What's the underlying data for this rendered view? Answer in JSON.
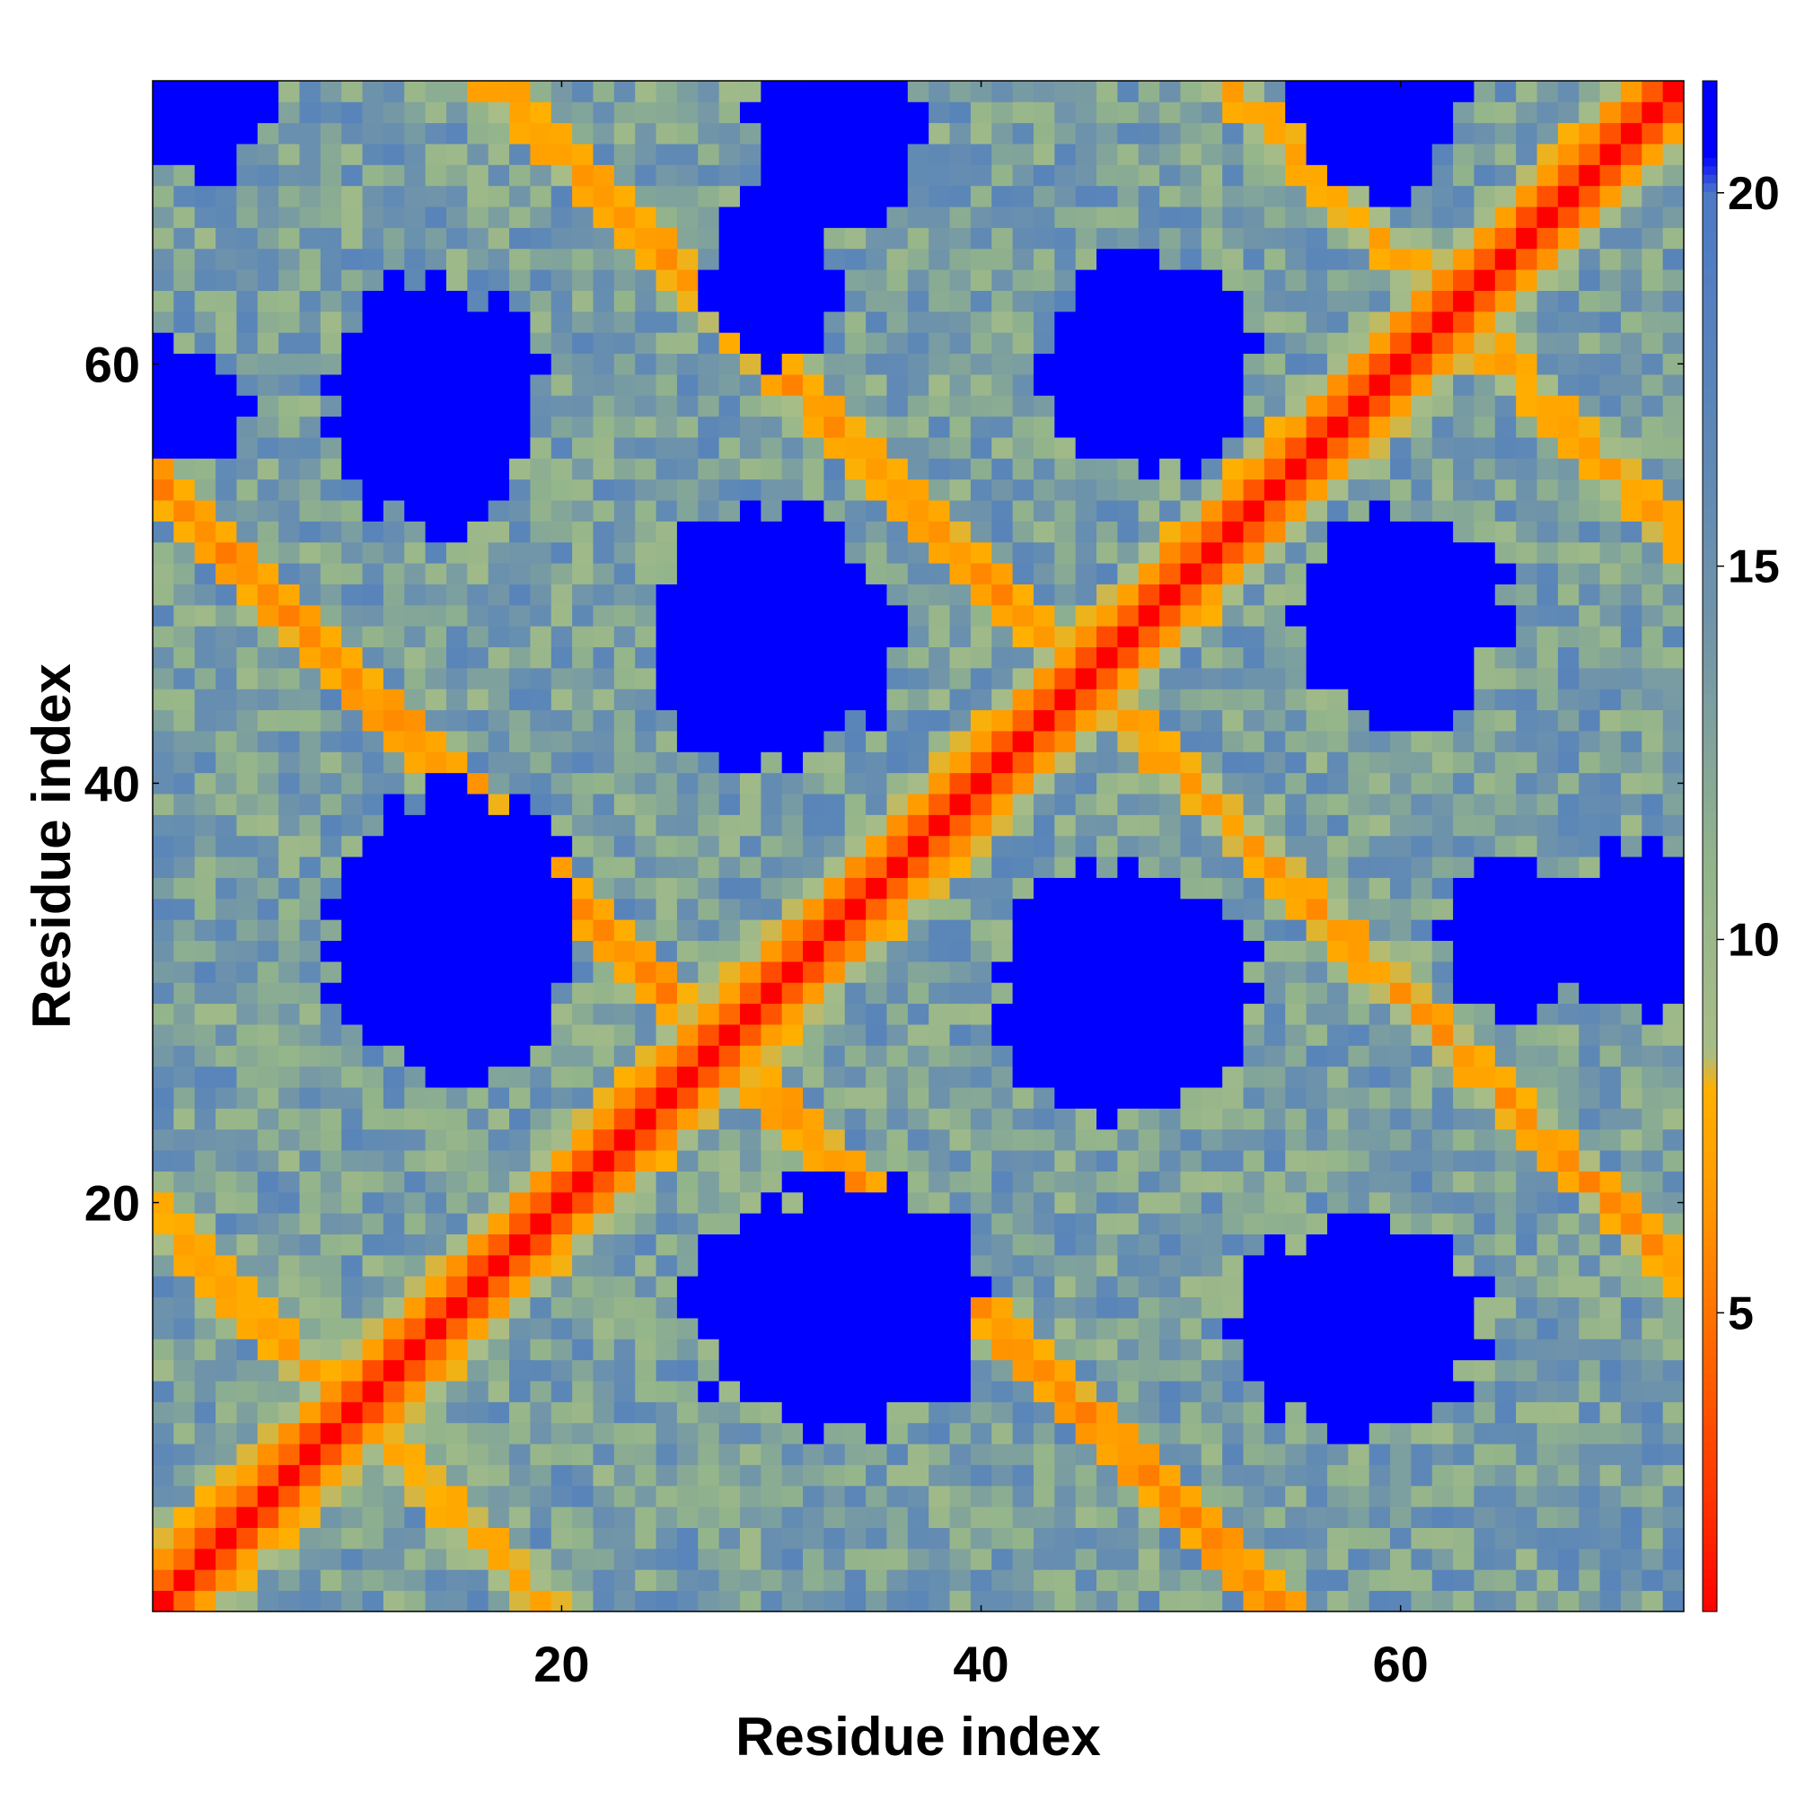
{
  "chart_data": {
    "type": "heatmap",
    "xlabel": "Residue index",
    "ylabel": "Residue index",
    "title": "",
    "x_range": [
      1,
      73
    ],
    "y_range": [
      1,
      73
    ],
    "n_residues": 73,
    "x_ticks": [
      20,
      40,
      60
    ],
    "y_ticks": [
      20,
      40,
      60
    ],
    "colorbar": {
      "ticks": [
        5,
        10,
        15,
        20
      ],
      "range": [
        1,
        21.5
      ],
      "stops": [
        {
          "value": 1,
          "color": "#ff0000"
        },
        {
          "value": 2.5,
          "color": "#ff3300"
        },
        {
          "value": 4.5,
          "color": "#ff6600"
        },
        {
          "value": 6.5,
          "color": "#ff9900"
        },
        {
          "value": 8,
          "color": "#ffb000"
        },
        {
          "value": 8.5,
          "color": "#a8bd88"
        },
        {
          "value": 11,
          "color": "#93b48b"
        },
        {
          "value": 14,
          "color": "#7296a8"
        },
        {
          "value": 17,
          "color": "#5b86b8"
        },
        {
          "value": 20,
          "color": "#4d79c7"
        },
        {
          "value": 20.5,
          "color": "#0000ff"
        },
        {
          "value": 21.5,
          "color": "#0000ff"
        }
      ]
    },
    "grid": false,
    "legend": "colorbar-right",
    "matrix_description": "Pairwise residue distance map of a 73-residue chain; values estimated from the color scale",
    "features": {
      "main_diagonal": {
        "value": 1
      },
      "near_diagonal": [
        {
          "offset": 1,
          "value": 4
        },
        {
          "offset": 2,
          "value": 6.5
        },
        {
          "offset": 3,
          "value": 8.5
        }
      ],
      "anti_diagonal_bands": [
        {
          "center": 55,
          "value": 6,
          "width": 1.4
        },
        {
          "center": 90,
          "value": 6.5,
          "width": 1.2
        },
        {
          "center": 20,
          "value": 7,
          "width": 1.1
        },
        {
          "center": 125,
          "value": 7,
          "width": 1.0
        }
      ],
      "far_blocks": [
        {
          "i": 15,
          "j": 33,
          "ri": 6,
          "rj": 7,
          "value": 21
        },
        {
          "i": 33,
          "j": 15,
          "ri": 7,
          "rj": 6,
          "value": 21
        },
        {
          "i": 30,
          "j": 47,
          "ri": 6,
          "rj": 6,
          "value": 21
        },
        {
          "i": 47,
          "j": 30,
          "ri": 6,
          "rj": 6,
          "value": 21
        },
        {
          "i": 14,
          "j": 58,
          "ri": 5,
          "rj": 6,
          "value": 21
        },
        {
          "i": 58,
          "j": 14,
          "ri": 6,
          "rj": 5,
          "value": 21
        },
        {
          "i": 48,
          "j": 60,
          "ri": 5,
          "rj": 5,
          "value": 21
        },
        {
          "i": 60,
          "j": 48,
          "ri": 5,
          "rj": 5,
          "value": 21
        },
        {
          "i": 33,
          "j": 72,
          "ri": 4,
          "rj": 6,
          "value": 21
        },
        {
          "i": 72,
          "j": 33,
          "ri": 6,
          "rj": 4,
          "value": 21
        },
        {
          "i": 65,
          "j": 33,
          "ri": 3,
          "rj": 4,
          "value": 21
        },
        {
          "i": 59,
          "j": 72,
          "ri": 4,
          "rj": 4,
          "value": 21
        },
        {
          "i": 30,
          "j": 64,
          "ri": 3,
          "rj": 4,
          "value": 21
        },
        {
          "i": 2,
          "j": 58,
          "ri": 3,
          "rj": 3,
          "value": 21
        },
        {
          "i": 3,
          "j": 72,
          "ri": 3,
          "rj": 3,
          "value": 21
        }
      ]
    }
  }
}
